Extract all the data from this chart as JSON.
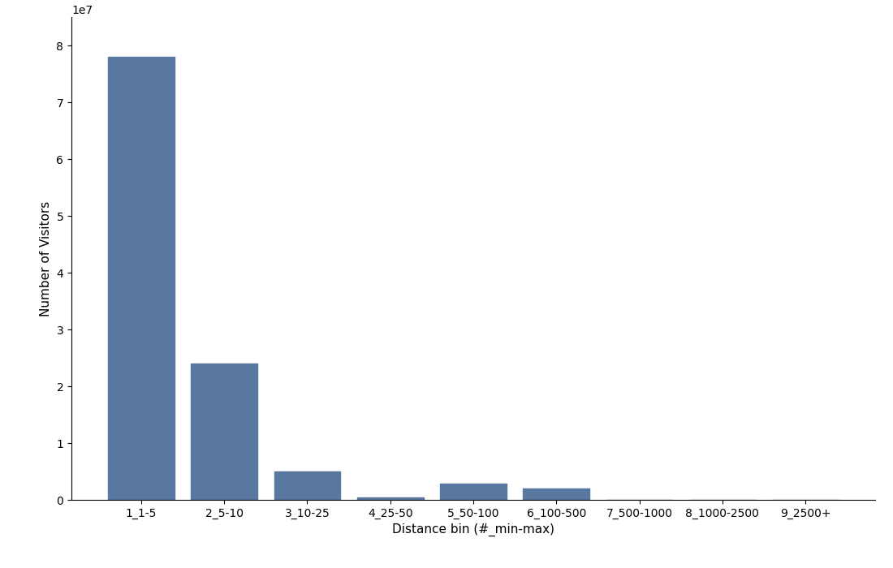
{
  "categories": [
    "1_1-5",
    "2_5-10",
    "3_10-25",
    "4_25-50",
    "5_50-100",
    "6_100-500",
    "7_500-1000",
    "8_1000-2500",
    "9_2500+"
  ],
  "values": [
    78000000,
    24000000,
    5000000,
    500000,
    2800000,
    2000000,
    50000,
    50000,
    50000
  ],
  "bar_color": "#5878a0",
  "xlabel": "Distance bin (#_min-max)",
  "ylabel": "Number of Visitors",
  "ylim": [
    0,
    85000000
  ],
  "background_color": "#ffffff",
  "figsize": [
    11.0,
    7.0
  ],
  "dpi": 100
}
